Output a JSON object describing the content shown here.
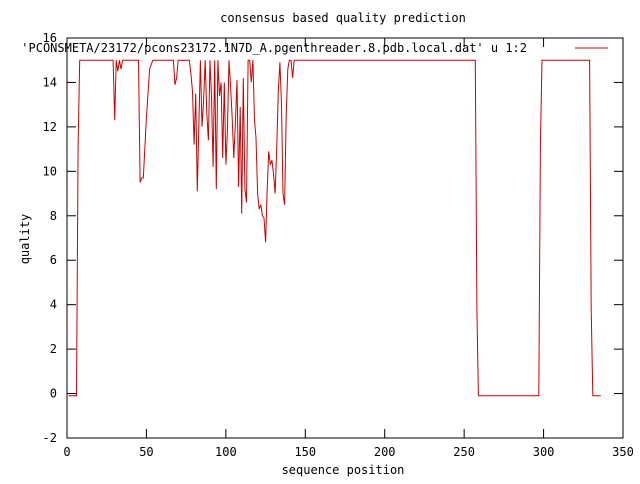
{
  "chart_data": {
    "type": "line",
    "title": "consensus based quality prediction",
    "xlabel": "sequence position",
    "ylabel": "quality",
    "xlim": [
      0,
      350
    ],
    "ylim": [
      -2,
      16
    ],
    "xticks": [
      0,
      50,
      100,
      150,
      200,
      250,
      300,
      350
    ],
    "yticks": [
      -2,
      0,
      2,
      4,
      6,
      8,
      10,
      12,
      14,
      16
    ],
    "grid": false,
    "legend_position": "top-right",
    "series": [
      {
        "name": "'PCONSMETA/23172/pcons23172.1N7D_A.pgenthreader.8.pdb.local.dat' u 1:2",
        "color": "#cc0000",
        "x": [
          1,
          6,
          7,
          8,
          29,
          30,
          31,
          32,
          33,
          34,
          35,
          36,
          45,
          46,
          47,
          48,
          49,
          50,
          52,
          54,
          55,
          67,
          68,
          69,
          70,
          71,
          77,
          78,
          79,
          80,
          81,
          82,
          83,
          84,
          85,
          86,
          87,
          88,
          89,
          90,
          91,
          92,
          93,
          94,
          95,
          96,
          97,
          98,
          99,
          100,
          101,
          102,
          103,
          104,
          105,
          106,
          107,
          108,
          109,
          110,
          111,
          112,
          113,
          114,
          115,
          116,
          117,
          118,
          119,
          120,
          121,
          122,
          123,
          124,
          125,
          126,
          127,
          128,
          129,
          130,
          131,
          132,
          133,
          134,
          135,
          136,
          137,
          138,
          139,
          140,
          141,
          142,
          143,
          144,
          145,
          146,
          147,
          148,
          149,
          150,
          151,
          152,
          153,
          154,
          257,
          258,
          259,
          297,
          298,
          299,
          329,
          330,
          331,
          336
        ],
        "y": [
          -0.1,
          -0.1,
          11.2,
          15.0,
          15.0,
          12.3,
          15.0,
          14.5,
          15.0,
          14.6,
          15.0,
          15.0,
          15.0,
          9.5,
          9.7,
          9.7,
          11.0,
          12.4,
          14.6,
          15.0,
          15.0,
          15.0,
          13.9,
          14.2,
          15.0,
          15.0,
          15.0,
          14.4,
          13.6,
          11.2,
          13.5,
          9.1,
          12.2,
          15.0,
          12.0,
          13.2,
          15.0,
          12.6,
          11.4,
          15.0,
          13.2,
          10.2,
          15.0,
          9.2,
          15.0,
          13.4,
          14.0,
          10.6,
          14.0,
          10.3,
          11.8,
          15.0,
          13.8,
          12.4,
          10.6,
          12.2,
          14.1,
          9.3,
          12.9,
          8.1,
          14.2,
          9.2,
          8.6,
          15.0,
          15.0,
          14.0,
          15.0,
          12.3,
          11.5,
          9.0,
          8.3,
          8.5,
          8.0,
          7.9,
          6.8,
          9.2,
          10.9,
          10.3,
          10.5,
          9.9,
          9.0,
          11.0,
          13.6,
          14.9,
          13.0,
          9.0,
          8.5,
          12.5,
          14.6,
          15.0,
          15.0,
          14.2,
          15.0,
          15.0,
          15.0,
          15.0,
          15.0,
          15.0,
          15.0,
          15.0,
          15.0,
          15.0,
          15.0,
          15.0,
          15.0,
          3.8,
          -0.1,
          -0.1,
          11.2,
          15.0,
          15.0,
          3.8,
          -0.1,
          -0.1
        ]
      }
    ]
  }
}
